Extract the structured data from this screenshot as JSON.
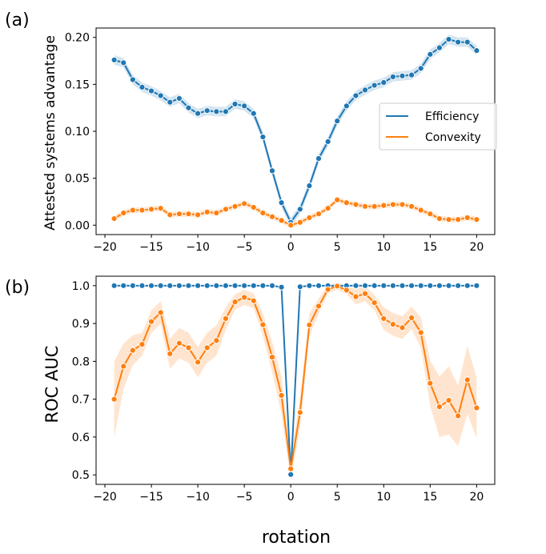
{
  "chart_data": [
    {
      "type": "line",
      "panel_label": "(a)",
      "ylabel": "Attested systems advantage",
      "xlabel": "",
      "xlim": [
        -20.95,
        21.95
      ],
      "ylim": [
        -0.01,
        0.21
      ],
      "x_ticks": [
        -20,
        -15,
        -10,
        -5,
        0,
        5,
        10,
        15,
        20
      ],
      "x_tick_labels": [
        "−20",
        "−15",
        "−10",
        "−5",
        "0",
        "5",
        "10",
        "15",
        "20"
      ],
      "y_ticks": [
        0.0,
        0.05,
        0.1,
        0.15,
        0.2
      ],
      "y_tick_labels": [
        "0.00",
        "0.05",
        "0.10",
        "0.15",
        "0.20"
      ],
      "legend": {
        "placement": "center-right",
        "entries": [
          "Efficiency",
          "Convexity"
        ]
      },
      "x": [
        -19,
        -18,
        -17,
        -16,
        -15,
        -14,
        -13,
        -12,
        -11,
        -10,
        -9,
        -8,
        -7,
        -6,
        -5,
        -4,
        -3,
        -2,
        -1,
        0,
        1,
        2,
        3,
        4,
        5,
        6,
        7,
        8,
        9,
        10,
        11,
        12,
        13,
        14,
        15,
        16,
        17,
        18,
        19,
        20
      ],
      "series": [
        {
          "name": "Efficiency",
          "color": "#1f77b4",
          "values": [
            0.176,
            0.173,
            0.155,
            0.147,
            0.143,
            0.138,
            0.131,
            0.135,
            0.125,
            0.119,
            0.122,
            0.121,
            0.121,
            0.129,
            0.127,
            0.119,
            0.094,
            0.058,
            0.024,
            0.003,
            0.017,
            0.042,
            0.071,
            0.089,
            0.111,
            0.127,
            0.138,
            0.144,
            0.149,
            0.152,
            0.158,
            0.159,
            0.16,
            0.167,
            0.182,
            0.189,
            0.198,
            0.195,
            0.195,
            0.186
          ],
          "ci_halfwidth": 0.005
        },
        {
          "name": "Convexity",
          "color": "#ff7f0e",
          "values": [
            0.007,
            0.013,
            0.016,
            0.016,
            0.017,
            0.018,
            0.011,
            0.012,
            0.012,
            0.011,
            0.014,
            0.013,
            0.017,
            0.02,
            0.023,
            0.019,
            0.013,
            0.009,
            0.005,
            0.0,
            0.003,
            0.008,
            0.012,
            0.018,
            0.027,
            0.024,
            0.022,
            0.02,
            0.02,
            0.021,
            0.022,
            0.022,
            0.02,
            0.016,
            0.012,
            0.007,
            0.006,
            0.006,
            0.008,
            0.006
          ],
          "ci_halfwidth": 0.003
        }
      ]
    },
    {
      "type": "line",
      "panel_label": "(b)",
      "ylabel": "ROC AUC",
      "xlabel": "rotation",
      "xlim": [
        -20.95,
        21.95
      ],
      "ylim": [
        0.475,
        1.025
      ],
      "x_ticks": [
        -20,
        -15,
        -10,
        -5,
        0,
        5,
        10,
        15,
        20
      ],
      "x_tick_labels": [
        "−20",
        "−15",
        "−10",
        "−5",
        "0",
        "5",
        "10",
        "15",
        "20"
      ],
      "y_ticks": [
        0.5,
        0.6,
        0.7,
        0.8,
        0.9,
        1.0
      ],
      "y_tick_labels": [
        "0.5",
        "0.6",
        "0.7",
        "0.8",
        "0.9",
        "1.0"
      ],
      "x": [
        -19,
        -18,
        -17,
        -16,
        -15,
        -14,
        -13,
        -12,
        -11,
        -10,
        -9,
        -8,
        -7,
        -6,
        -5,
        -4,
        -3,
        -2,
        -1,
        0,
        1,
        2,
        3,
        4,
        5,
        6,
        7,
        8,
        9,
        10,
        11,
        12,
        13,
        14,
        15,
        16,
        17,
        18,
        19,
        20
      ],
      "series": [
        {
          "name": "Efficiency",
          "color": "#1f77b4",
          "values": [
            1.0,
            1.0,
            1.0,
            1.0,
            1.0,
            1.0,
            1.0,
            1.0,
            1.0,
            1.0,
            1.0,
            1.0,
            1.0,
            1.0,
            1.0,
            1.0,
            1.0,
            1.0,
            0.996,
            0.501,
            0.997,
            1.0,
            1.0,
            1.0,
            1.0,
            1.0,
            1.0,
            1.0,
            1.0,
            1.0,
            1.0,
            1.0,
            1.0,
            1.0,
            1.0,
            1.0,
            1.0,
            1.0,
            1.0,
            1.0
          ],
          "ci_halfwidth": 0.002
        },
        {
          "name": "Convexity",
          "color": "#ff7f0e",
          "values": [
            0.7,
            0.787,
            0.829,
            0.845,
            0.905,
            0.929,
            0.82,
            0.848,
            0.836,
            0.798,
            0.836,
            0.855,
            0.913,
            0.957,
            0.969,
            0.96,
            0.897,
            0.811,
            0.71,
            0.516,
            0.665,
            0.896,
            0.946,
            0.99,
            0.999,
            0.988,
            0.971,
            0.979,
            0.955,
            0.913,
            0.898,
            0.889,
            0.915,
            0.876,
            0.742,
            0.68,
            0.697,
            0.656,
            0.751,
            0.677
          ],
          "ci_halfwidth": [
            0.1,
            0.06,
            0.04,
            0.03,
            0.03,
            0.03,
            0.04,
            0.04,
            0.04,
            0.04,
            0.04,
            0.04,
            0.03,
            0.02,
            0.02,
            0.02,
            0.03,
            0.04,
            0.05,
            0.03,
            0.04,
            0.03,
            0.02,
            0.01,
            0.01,
            0.01,
            0.02,
            0.02,
            0.02,
            0.03,
            0.03,
            0.03,
            0.03,
            0.04,
            0.06,
            0.08,
            0.09,
            0.08,
            0.09,
            0.08
          ]
        }
      ]
    }
  ]
}
